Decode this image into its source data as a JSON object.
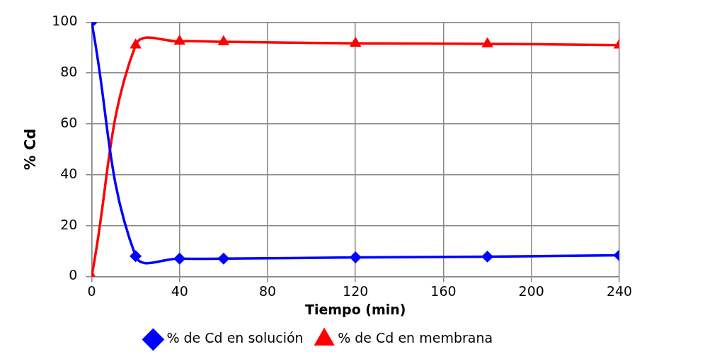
{
  "chart_data": {
    "type": "line",
    "xlabel": "Tiempo (min)",
    "ylabel": "% Cd",
    "x": [
      0,
      20,
      40,
      60,
      120,
      180,
      240
    ],
    "series": [
      {
        "name": "% de Cd en solución",
        "color": "#0000ff",
        "marker": "diamond",
        "values": [
          100,
          8,
          7,
          7,
          7.5,
          7.8,
          8.3
        ]
      },
      {
        "name": "% de Cd en membrana",
        "color": "#ff0000",
        "marker": "triangle",
        "values": [
          0,
          91,
          92.5,
          92.3,
          91.7,
          91.5,
          91
        ]
      }
    ],
    "xlim": [
      0,
      240
    ],
    "xticks": [
      0,
      40,
      80,
      120,
      160,
      200,
      240
    ],
    "ylim": [
      0,
      100
    ],
    "yticks": [
      0,
      20,
      40,
      60,
      80,
      100
    ],
    "grid": true,
    "legend": "bottom"
  }
}
